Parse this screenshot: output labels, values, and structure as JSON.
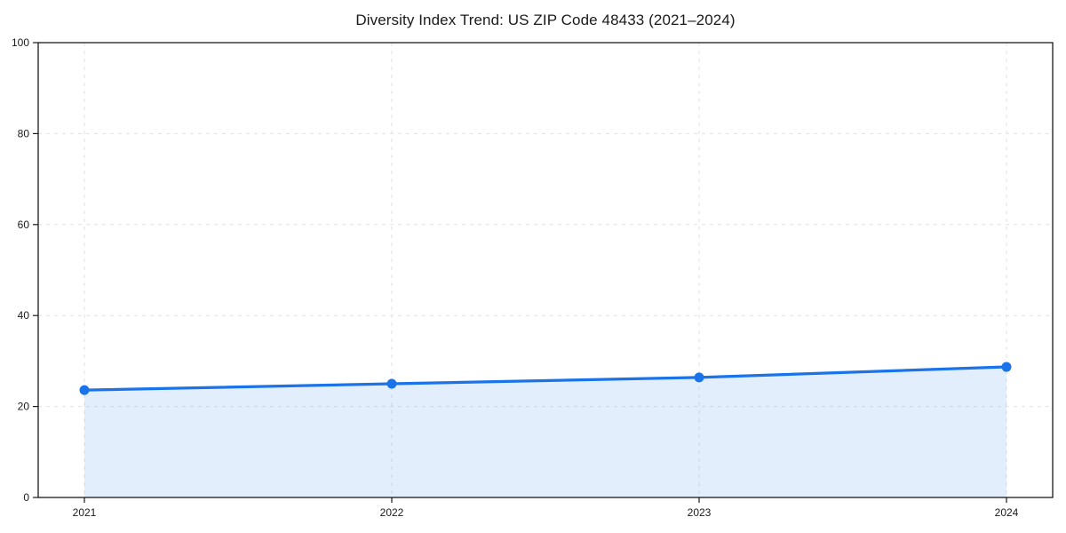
{
  "title": "Diversity Index Trend: US ZIP Code 48433 (2021–2024)",
  "chart_data": {
    "type": "line",
    "title": "Diversity Index Trend: US ZIP Code 48433 (2021–2024)",
    "categories": [
      "2021",
      "2022",
      "2023",
      "2024"
    ],
    "series": [
      {
        "name": "Diversity Index",
        "values": [
          23.6,
          25.0,
          26.4,
          28.7
        ]
      }
    ],
    "xlabel": "",
    "ylabel": "",
    "ylim": [
      0,
      100
    ],
    "yticks": [
      0,
      20,
      40,
      60,
      80,
      100
    ],
    "grid": true,
    "grid_style": "dashed",
    "legend_position": "none",
    "area_under_line": true,
    "colors": {
      "line": "#1a73e8",
      "marker": "#1a73e8",
      "area_fill": "rgba(26,115,232,0.12)",
      "grid": "#e2e2e2",
      "spine": "#1a1a1a",
      "tick_label": "#1a1a1a",
      "background": "#ffffff"
    }
  }
}
